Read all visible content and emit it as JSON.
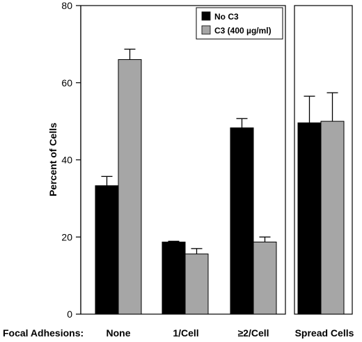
{
  "chart_data": {
    "type": "bar",
    "ylabel": "Percent of Cells",
    "ylim": [
      0,
      80
    ],
    "yticks": [
      "0",
      "20",
      "40",
      "60",
      "80"
    ],
    "xaxis_prefix": "Focal Adhesions:",
    "categories": [
      "None",
      "1/Cell",
      "≥2/Cell",
      "Spread Cells"
    ],
    "panels": [
      {
        "categories": [
          "None",
          "1/Cell",
          "≥2/Cell"
        ]
      },
      {
        "categories": [
          "Spread Cells"
        ]
      }
    ],
    "series": [
      {
        "name": "No C3",
        "color": "#000000",
        "values": [
          33.3,
          18.7,
          48.3,
          49.6
        ],
        "errors": [
          2.4,
          0.2,
          2.4,
          6.9
        ]
      },
      {
        "name": "C3 (400 µg/ml)",
        "color": "#a6a6a6",
        "values": [
          66.0,
          15.6,
          18.7,
          50.0
        ],
        "errors": [
          2.7,
          1.4,
          1.3,
          7.4
        ]
      }
    ],
    "legend_position": "top-right of left panel",
    "grid": false
  }
}
